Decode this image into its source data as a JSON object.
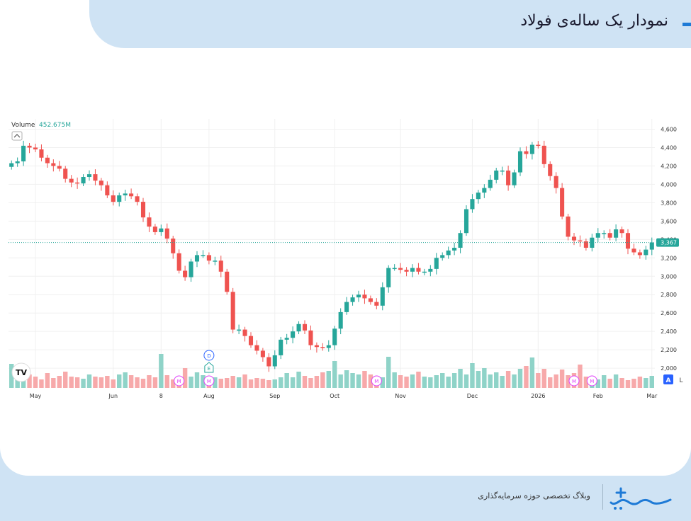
{
  "title": "نمودار یک ساله‌ی فولاد",
  "footer": {
    "caption": "وبلاگ تخصصی حوزه سرمایه‌گذاری"
  },
  "colors": {
    "up": "#26a69a",
    "down": "#ef5350",
    "up_volume": "#8fd3c8",
    "down_volume": "#f7a9aa",
    "accent": "#1e7ad6",
    "header_bg": "#cfe3f4"
  },
  "chart_data": {
    "type": "candlestick",
    "volume": {
      "label": "Volume",
      "value_label": "452.675M"
    },
    "current_price_label": "3,367",
    "current_price": 3367,
    "y_ticks": [
      "4,600",
      "4,400",
      "4,200",
      "4,000",
      "3,800",
      "3,600",
      "3,400",
      "3,200",
      "3,000",
      "2,800",
      "2,600",
      "2,400",
      "2,200",
      "2,000"
    ],
    "y_tick_values": [
      4600,
      4400,
      4200,
      4000,
      3800,
      3600,
      3400,
      3200,
      3000,
      2800,
      2600,
      2400,
      2200,
      2000
    ],
    "ylim": [
      1970,
      4650
    ],
    "x_ticks": [
      "May",
      "Jun",
      "8",
      "Aug",
      "Sep",
      "Oct",
      "Nov",
      "Dec",
      "2026",
      "Feb",
      "Mar"
    ],
    "x_tick_index": [
      4,
      17,
      25,
      33,
      44,
      54,
      65,
      77,
      88,
      98,
      107
    ],
    "grid": true,
    "events": [
      {
        "label": "M",
        "index": 28
      },
      {
        "label": "M",
        "index": 33
      },
      {
        "label": "E",
        "index": 33
      },
      {
        "label": "D",
        "index": 33
      },
      {
        "label": "M",
        "index": 61
      },
      {
        "label": "M",
        "index": 94
      },
      {
        "label": "M",
        "index": 97
      }
    ],
    "watermark": "TV",
    "scale_mode": "A",
    "scale_mode_2": "L",
    "closes": [
      4230,
      4250,
      4420,
      4400,
      4380,
      4290,
      4230,
      4200,
      4170,
      4060,
      4020,
      4010,
      4080,
      4110,
      4040,
      3990,
      3880,
      3810,
      3880,
      3900,
      3870,
      3810,
      3640,
      3540,
      3480,
      3520,
      3410,
      3250,
      3060,
      2990,
      3160,
      3230,
      3230,
      3170,
      3170,
      3050,
      2830,
      2420,
      2420,
      2350,
      2250,
      2190,
      2120,
      2020,
      2140,
      2310,
      2330,
      2400,
      2480,
      2410,
      2250,
      2230,
      2220,
      2250,
      2430,
      2610,
      2720,
      2770,
      2800,
      2760,
      2720,
      2680,
      2880,
      3090,
      3090,
      3070,
      3050,
      3090,
      3050,
      3050,
      3080,
      3200,
      3230,
      3280,
      3310,
      3470,
      3730,
      3840,
      3910,
      3960,
      4050,
      4150,
      4150,
      3990,
      4130,
      4360,
      4330,
      4430,
      4420,
      4220,
      4090,
      3960,
      3650,
      3430,
      3390,
      3380,
      3310,
      3420,
      3470,
      3470,
      3420,
      3510,
      3470,
      3300,
      3260,
      3230,
      3290,
      3367
    ],
    "volumes": [
      0.34,
      0.14,
      0.28,
      0.19,
      0.16,
      0.12,
      0.21,
      0.14,
      0.17,
      0.23,
      0.16,
      0.15,
      0.13,
      0.19,
      0.16,
      0.15,
      0.17,
      0.12,
      0.19,
      0.22,
      0.18,
      0.15,
      0.13,
      0.18,
      0.15,
      0.48,
      0.18,
      0.12,
      0.14,
      0.28,
      0.16,
      0.22,
      0.18,
      0.14,
      0.15,
      0.13,
      0.14,
      0.17,
      0.15,
      0.19,
      0.12,
      0.14,
      0.13,
      0.11,
      0.12,
      0.15,
      0.21,
      0.15,
      0.23,
      0.17,
      0.14,
      0.17,
      0.22,
      0.24,
      0.38,
      0.19,
      0.25,
      0.21,
      0.19,
      0.24,
      0.19,
      0.16,
      0.15,
      0.44,
      0.22,
      0.18,
      0.16,
      0.19,
      0.23,
      0.16,
      0.15,
      0.18,
      0.21,
      0.16,
      0.21,
      0.27,
      0.19,
      0.35,
      0.24,
      0.28,
      0.19,
      0.22,
      0.17,
      0.24,
      0.19,
      0.27,
      0.31,
      0.43,
      0.21,
      0.27,
      0.15,
      0.19,
      0.26,
      0.18,
      0.21,
      0.33,
      0.16,
      0.15,
      0.12,
      0.18,
      0.13,
      0.19,
      0.14,
      0.11,
      0.13,
      0.16,
      0.14,
      0.17
    ],
    "volumes_scale_max": 1.0
  }
}
